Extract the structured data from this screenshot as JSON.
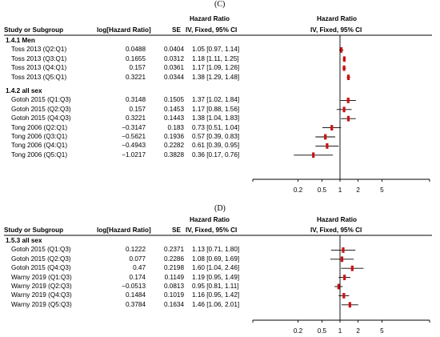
{
  "panels": [
    {
      "label": "(C)",
      "header": {
        "study": "Study or Subgroup",
        "loghr": "log[Hazard Ratio]",
        "se": "SE",
        "hr_title": "Hazard Ratio",
        "hr_sub": "IV, Fixed, 95% CI",
        "plot_title": "Hazard Ratio",
        "plot_sub": "IV, Fixed, 95% CI"
      },
      "subgroups": [
        {
          "title": "1.4.1 Men",
          "rows": [
            {
              "study": "Toss 2013 (Q2:Q1)",
              "loghr": "0.0488",
              "se": "0.0404",
              "ci": "1.05 [0.97, 1.14]"
            },
            {
              "study": "Toss 2013 (Q3:Q1)",
              "loghr": "0.1655",
              "se": "0.0312",
              "ci": "1.18 [1.11, 1.25]"
            },
            {
              "study": "Toss 2013 (Q4:Q1)",
              "loghr": "0.157",
              "se": "0.0361",
              "ci": "1.17 [1.09, 1.26]"
            },
            {
              "study": "Toss 2013 (Q5:Q1)",
              "loghr": "0.3221",
              "se": "0.0344",
              "ci": "1.38 [1.29, 1.48]"
            }
          ]
        },
        {
          "title": "1.4.2 all sex",
          "rows": [
            {
              "study": "Gotoh 2015 (Q1:Q3)",
              "loghr": "0.3148",
              "se": "0.1505",
              "ci": "1.37 [1.02, 1.84]"
            },
            {
              "study": "Gotoh 2015 (Q2:Q3)",
              "loghr": "0.157",
              "se": "0.1453",
              "ci": "1.17 [0.88, 1.56]"
            },
            {
              "study": "Gotoh 2015 (Q4:Q3)",
              "loghr": "0.3221",
              "se": "0.1443",
              "ci": "1.38 [1.04, 1.83]"
            },
            {
              "study": "Tong 2006 (Q2:Q1)",
              "loghr": "−0.3147",
              "se": "0.183",
              "ci": "0.73 [0.51, 1.04]"
            },
            {
              "study": "Tong 2006 (Q3:Q1)",
              "loghr": "−0.5621",
              "se": "0.1936",
              "ci": "0.57 [0.39, 0.83]"
            },
            {
              "study": "Tong 2006 (Q4:Q1)",
              "loghr": "−0.4943",
              "se": "0.2282",
              "ci": "0.61 [0.39, 0.95]"
            },
            {
              "study": "Tong 2006 (Q5:Q1)",
              "loghr": "−1.0217",
              "se": "0.3828",
              "ci": "0.36 [0.17, 0.76]"
            }
          ]
        }
      ],
      "axis_ticks": [
        "0.2",
        "0.5",
        "1",
        "2",
        "5"
      ]
    },
    {
      "label": "(D)",
      "header": {
        "study": "Study or Subgroup",
        "loghr": "log[Hazard Ratio]",
        "se": "SE",
        "hr_title": "Hazard Ratio",
        "hr_sub": "IV, Fixed, 95% CI",
        "plot_title": "Hazard Ratio",
        "plot_sub": "IV, Fixed, 95% CI"
      },
      "subgroups": [
        {
          "title": "1.5.3 all sex",
          "rows": [
            {
              "study": "Gotoh 2015 (Q1:Q3)",
              "loghr": "0.1222",
              "se": "0.2371",
              "ci": "1.13 [0.71, 1.80]"
            },
            {
              "study": "Gotoh 2015 (Q2:Q3)",
              "loghr": "0.077",
              "se": "0.2286",
              "ci": "1.08 [0.69, 1.69]"
            },
            {
              "study": "Gotoh 2015 (Q4:Q3)",
              "loghr": "0.47",
              "se": "0.2198",
              "ci": "1.60 [1.04, 2.46]"
            },
            {
              "study": "Warny 2019 (Q1:Q3)",
              "loghr": "0.174",
              "se": "0.1149",
              "ci": "1.19 [0.95, 1.49]"
            },
            {
              "study": "Warny 2019 (Q2:Q3)",
              "loghr": "−0.0513",
              "se": "0.0813",
              "ci": "0.95 [0.81, 1.11]"
            },
            {
              "study": "Warny 2019 (Q4:Q3)",
              "loghr": "0.1484",
              "se": "0.1019",
              "ci": "1.16 [0.95, 1.42]"
            },
            {
              "study": "Warny 2019 (Q5:Q3)",
              "loghr": "0.3784",
              "se": "0.1634",
              "ci": "1.46 [1.06, 2.01]"
            }
          ]
        }
      ],
      "axis_ticks": [
        "0.2",
        "0.5",
        "1",
        "2",
        "5"
      ]
    }
  ],
  "colors": {
    "point": "#cc1111",
    "line": "#000000",
    "header_rule": "#000000"
  },
  "chart_data": [
    {
      "type": "forest",
      "scale": "log",
      "xlim": [
        0.1,
        10
      ],
      "reference_line": 1,
      "xticks": [
        0.2,
        0.5,
        1,
        2,
        5
      ],
      "series": [
        {
          "name": "1.4.1 Men",
          "points": [
            {
              "label": "Toss 2013 (Q2:Q1)",
              "hr": 1.05,
              "lo": 0.97,
              "hi": 1.14
            },
            {
              "label": "Toss 2013 (Q3:Q1)",
              "hr": 1.18,
              "lo": 1.11,
              "hi": 1.25
            },
            {
              "label": "Toss 2013 (Q4:Q1)",
              "hr": 1.17,
              "lo": 1.09,
              "hi": 1.26
            },
            {
              "label": "Toss 2013 (Q5:Q1)",
              "hr": 1.38,
              "lo": 1.29,
              "hi": 1.48
            }
          ]
        },
        {
          "name": "1.4.2 all sex",
          "points": [
            {
              "label": "Gotoh 2015 (Q1:Q3)",
              "hr": 1.37,
              "lo": 1.02,
              "hi": 1.84
            },
            {
              "label": "Gotoh 2015 (Q2:Q3)",
              "hr": 1.17,
              "lo": 0.88,
              "hi": 1.56
            },
            {
              "label": "Gotoh 2015 (Q4:Q3)",
              "hr": 1.38,
              "lo": 1.04,
              "hi": 1.83
            },
            {
              "label": "Tong 2006 (Q2:Q1)",
              "hr": 0.73,
              "lo": 0.51,
              "hi": 1.04
            },
            {
              "label": "Tong 2006 (Q3:Q1)",
              "hr": 0.57,
              "lo": 0.39,
              "hi": 0.83
            },
            {
              "label": "Tong 2006 (Q4:Q1)",
              "hr": 0.61,
              "lo": 0.39,
              "hi": 0.95
            },
            {
              "label": "Tong 2006 (Q5:Q1)",
              "hr": 0.36,
              "lo": 0.17,
              "hi": 0.76
            }
          ]
        }
      ]
    },
    {
      "type": "forest",
      "scale": "log",
      "xlim": [
        0.1,
        10
      ],
      "reference_line": 1,
      "xticks": [
        0.2,
        0.5,
        1,
        2,
        5
      ],
      "series": [
        {
          "name": "1.5.3 all sex",
          "points": [
            {
              "label": "Gotoh 2015 (Q1:Q3)",
              "hr": 1.13,
              "lo": 0.71,
              "hi": 1.8
            },
            {
              "label": "Gotoh 2015 (Q2:Q3)",
              "hr": 1.08,
              "lo": 0.69,
              "hi": 1.69
            },
            {
              "label": "Gotoh 2015 (Q4:Q3)",
              "hr": 1.6,
              "lo": 1.04,
              "hi": 2.46
            },
            {
              "label": "Warny 2019 (Q1:Q3)",
              "hr": 1.19,
              "lo": 0.95,
              "hi": 1.49
            },
            {
              "label": "Warny 2019 (Q2:Q3)",
              "hr": 0.95,
              "lo": 0.81,
              "hi": 1.11
            },
            {
              "label": "Warny 2019 (Q4:Q3)",
              "hr": 1.16,
              "lo": 0.95,
              "hi": 1.42
            },
            {
              "label": "Warny 2019 (Q5:Q3)",
              "hr": 1.46,
              "lo": 1.06,
              "hi": 2.01
            }
          ]
        }
      ]
    }
  ]
}
